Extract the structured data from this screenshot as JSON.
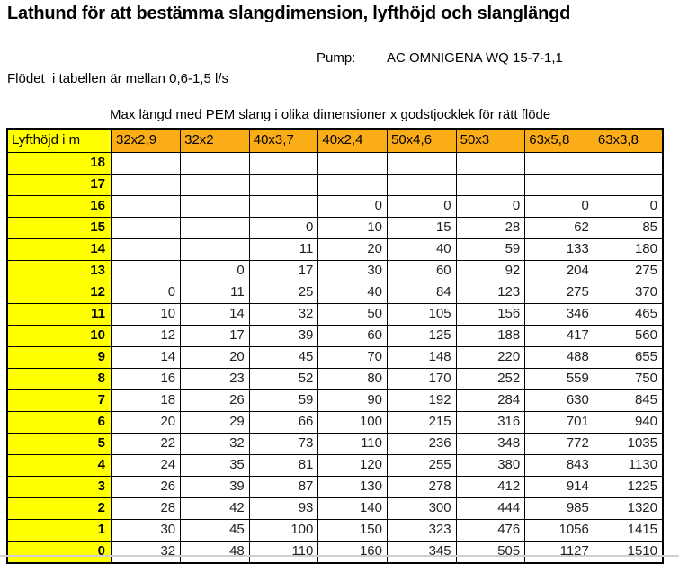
{
  "header": {
    "title": "Lathund för att bestämma slangdimension, lyfthöjd och slanglängd",
    "pump_label": "Pump:",
    "pump_value": "AC OMNIGENA WQ 15-7-1,1",
    "flow_note": "Flödet  i tabellen är mellan 0,6-1,5 l/s"
  },
  "table": {
    "caption": "Max längd med PEM slang i olika dimensioner x godstjocklek för rätt flöde",
    "row_header_label": "Lyfthöjd i m",
    "columns": [
      "32x2,9",
      "32x2",
      "40x3,7",
      "40x2,4",
      "50x4,6",
      "50x3",
      "63x5,8",
      "63x3,8"
    ],
    "rows": [
      {
        "lyfthojd": "18",
        "values": [
          "",
          "",
          "",
          "",
          "",
          "",
          "",
          ""
        ]
      },
      {
        "lyfthojd": "17",
        "values": [
          "",
          "",
          "",
          "",
          "",
          "",
          "",
          ""
        ]
      },
      {
        "lyfthojd": "16",
        "values": [
          "",
          "",
          "",
          "0",
          "0",
          "0",
          "0",
          "0"
        ]
      },
      {
        "lyfthojd": "15",
        "values": [
          "",
          "",
          "0",
          "10",
          "15",
          "28",
          "62",
          "85"
        ]
      },
      {
        "lyfthojd": "14",
        "values": [
          "",
          "",
          "11",
          "20",
          "40",
          "59",
          "133",
          "180"
        ]
      },
      {
        "lyfthojd": "13",
        "values": [
          "",
          "0",
          "17",
          "30",
          "60",
          "92",
          "204",
          "275"
        ]
      },
      {
        "lyfthojd": "12",
        "values": [
          "0",
          "11",
          "25",
          "40",
          "84",
          "123",
          "275",
          "370"
        ]
      },
      {
        "lyfthojd": "11",
        "values": [
          "10",
          "14",
          "32",
          "50",
          "105",
          "156",
          "346",
          "465"
        ]
      },
      {
        "lyfthojd": "10",
        "values": [
          "12",
          "17",
          "39",
          "60",
          "125",
          "188",
          "417",
          "560"
        ]
      },
      {
        "lyfthojd": "9",
        "values": [
          "14",
          "20",
          "45",
          "70",
          "148",
          "220",
          "488",
          "655"
        ]
      },
      {
        "lyfthojd": "8",
        "values": [
          "16",
          "23",
          "52",
          "80",
          "170",
          "252",
          "559",
          "750"
        ]
      },
      {
        "lyfthojd": "7",
        "values": [
          "18",
          "26",
          "59",
          "90",
          "192",
          "284",
          "630",
          "845"
        ]
      },
      {
        "lyfthojd": "6",
        "values": [
          "20",
          "29",
          "66",
          "100",
          "215",
          "316",
          "701",
          "940"
        ]
      },
      {
        "lyfthojd": "5",
        "values": [
          "22",
          "32",
          "73",
          "110",
          "236",
          "348",
          "772",
          "1035"
        ]
      },
      {
        "lyfthojd": "4",
        "values": [
          "24",
          "35",
          "81",
          "120",
          "255",
          "380",
          "843",
          "1130"
        ]
      },
      {
        "lyfthojd": "3",
        "values": [
          "26",
          "39",
          "87",
          "130",
          "278",
          "412",
          "914",
          "1225"
        ]
      },
      {
        "lyfthojd": "2",
        "values": [
          "28",
          "42",
          "93",
          "140",
          "300",
          "444",
          "985",
          "1320"
        ]
      },
      {
        "lyfthojd": "1",
        "values": [
          "30",
          "45",
          "100",
          "150",
          "323",
          "476",
          "1056",
          "1415"
        ]
      },
      {
        "lyfthojd": "0",
        "values": [
          "32",
          "48",
          "110",
          "160",
          "345",
          "505",
          "1127",
          "1510"
        ]
      }
    ]
  },
  "colors": {
    "row_header_bg": "#FFFF00",
    "column_header_bg": "#FBAD18"
  }
}
